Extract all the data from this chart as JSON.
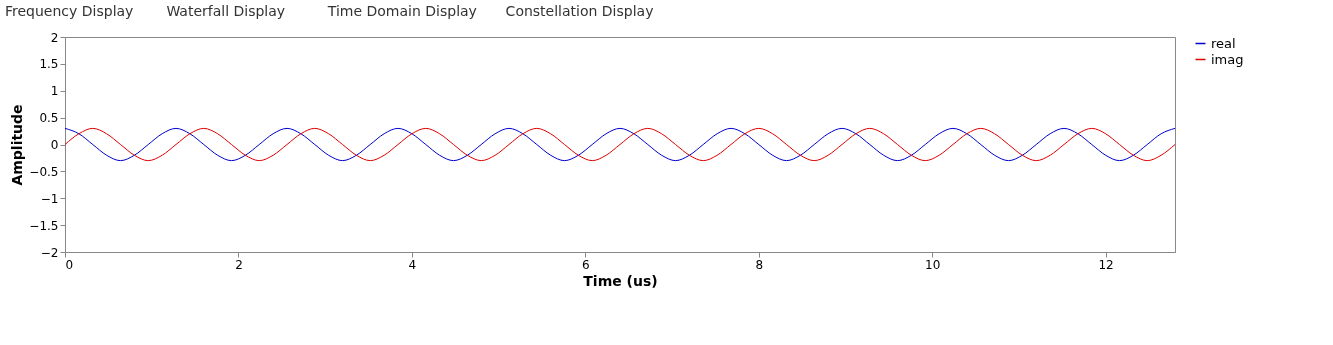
{
  "chart_data": {
    "type": "line",
    "annotations": [
      "Frequency Display",
      "Waterfall Display",
      "Time Domain Display",
      "Constellation Display"
    ],
    "xlabel": "Time (us)",
    "ylabel": "Amplitude",
    "x": [
      0,
      0.16,
      0.32,
      0.48,
      0.64,
      0.8,
      0.96,
      1.12,
      1.28,
      1.44,
      1.6,
      1.76,
      1.92,
      2.08,
      2.24,
      2.4,
      2.56,
      2.72,
      2.88,
      3.04,
      3.2,
      3.36,
      3.52,
      3.68,
      3.84,
      4,
      4.16,
      4.32,
      4.48,
      4.64,
      4.8,
      4.96,
      5.12,
      5.28,
      5.44,
      5.6,
      5.76,
      5.92,
      6.08,
      6.24,
      6.4,
      6.56,
      6.72,
      6.88,
      7.04,
      7.2,
      7.36,
      7.52,
      7.68,
      7.84,
      8,
      8.16,
      8.32,
      8.48,
      8.64,
      8.8,
      8.96,
      9.12,
      9.28,
      9.44,
      9.6,
      9.76,
      9.92,
      10.08,
      10.24,
      10.4,
      10.56,
      10.72,
      10.88,
      11.04,
      11.2,
      11.36,
      11.52,
      11.68,
      11.84,
      12,
      12.16,
      12.32,
      12.48,
      12.64,
      12.8
    ],
    "series": [
      {
        "name": "real",
        "color": "#0000cc",
        "values": [
          0.3,
          0.2,
          0,
          -0.2,
          -0.3,
          -0.2,
          0,
          0.2,
          0.3,
          0.2,
          0,
          -0.2,
          -0.3,
          -0.2,
          0,
          0.2,
          0.3,
          0.2,
          0,
          -0.2,
          -0.3,
          -0.2,
          0,
          0.2,
          0.3,
          0.2,
          0,
          -0.2,
          -0.3,
          -0.2,
          0,
          0.2,
          0.3,
          0.2,
          0,
          -0.2,
          -0.3,
          -0.2,
          0,
          0.2,
          0.3,
          0.2,
          0,
          -0.2,
          -0.3,
          -0.2,
          0,
          0.2,
          0.3,
          0.2,
          0,
          -0.2,
          -0.3,
          -0.2,
          0,
          0.2,
          0.3,
          0.2,
          0,
          -0.2,
          -0.3,
          -0.2,
          0,
          0.2,
          0.3,
          0.2,
          0,
          -0.2,
          -0.3,
          -0.2,
          0,
          0.2,
          0.3,
          0.2,
          0,
          -0.2,
          -0.3,
          -0.2,
          0,
          0.2,
          0.3
        ]
      },
      {
        "name": "imag",
        "color": "#dd0000",
        "values": [
          0,
          0.2,
          0.3,
          0.2,
          0,
          -0.2,
          -0.3,
          -0.2,
          0,
          0.2,
          0.3,
          0.2,
          0,
          -0.2,
          -0.3,
          -0.2,
          0,
          0.2,
          0.3,
          0.2,
          0,
          -0.2,
          -0.3,
          -0.2,
          0,
          0.2,
          0.3,
          0.2,
          0,
          -0.2,
          -0.3,
          -0.2,
          0,
          0.2,
          0.3,
          0.2,
          0,
          -0.2,
          -0.3,
          -0.2,
          0,
          0.2,
          0.3,
          0.2,
          0,
          -0.2,
          -0.3,
          -0.2,
          0,
          0.2,
          0.3,
          0.2,
          0,
          -0.2,
          -0.3,
          -0.2,
          0,
          0.2,
          0.3,
          0.2,
          0,
          -0.2,
          -0.3,
          -0.2,
          0,
          0.2,
          0.3,
          0.2,
          0,
          -0.2,
          -0.3,
          -0.2,
          0,
          0.2,
          0.3,
          0.2,
          0,
          -0.2,
          -0.3,
          -0.2,
          0
        ]
      }
    ],
    "xlim": [
      0,
      12.8
    ],
    "xticks": [
      0,
      2,
      4,
      6,
      8,
      10,
      12
    ],
    "ylim": [
      -2,
      2
    ],
    "yticks": [
      -2,
      -1.5,
      -1,
      -0.5,
      0,
      0.5,
      1,
      1.5,
      2
    ],
    "grid": false,
    "legend": "right",
    "line_style": "solid",
    "marker": "none"
  }
}
